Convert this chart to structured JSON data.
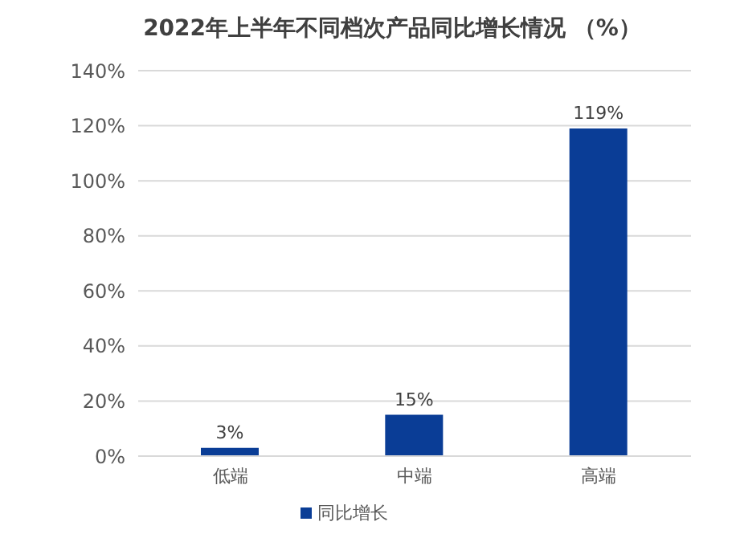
{
  "chart_data": {
    "type": "bar",
    "title": "2022年上半年不同档次产品同比增长情况 （%）",
    "categories": [
      "低端",
      "中端",
      "高端"
    ],
    "series": [
      {
        "name": "同比增长",
        "color": "#0a3d96",
        "values": [
          3,
          15,
          119
        ]
      }
    ],
    "value_labels": [
      "3%",
      "15%",
      "119%"
    ],
    "ylim": [
      0,
      140
    ],
    "yticks": [
      {
        "value": 0,
        "label": "0%"
      },
      {
        "value": 20,
        "label": "20%"
      },
      {
        "value": 40,
        "label": "40%"
      },
      {
        "value": 60,
        "label": "60%"
      },
      {
        "value": 80,
        "label": "80%"
      },
      {
        "value": 100,
        "label": "100%"
      },
      {
        "value": 120,
        "label": "120%"
      },
      {
        "value": 140,
        "label": "140%"
      }
    ],
    "grid": "y",
    "legend": "bottom"
  }
}
